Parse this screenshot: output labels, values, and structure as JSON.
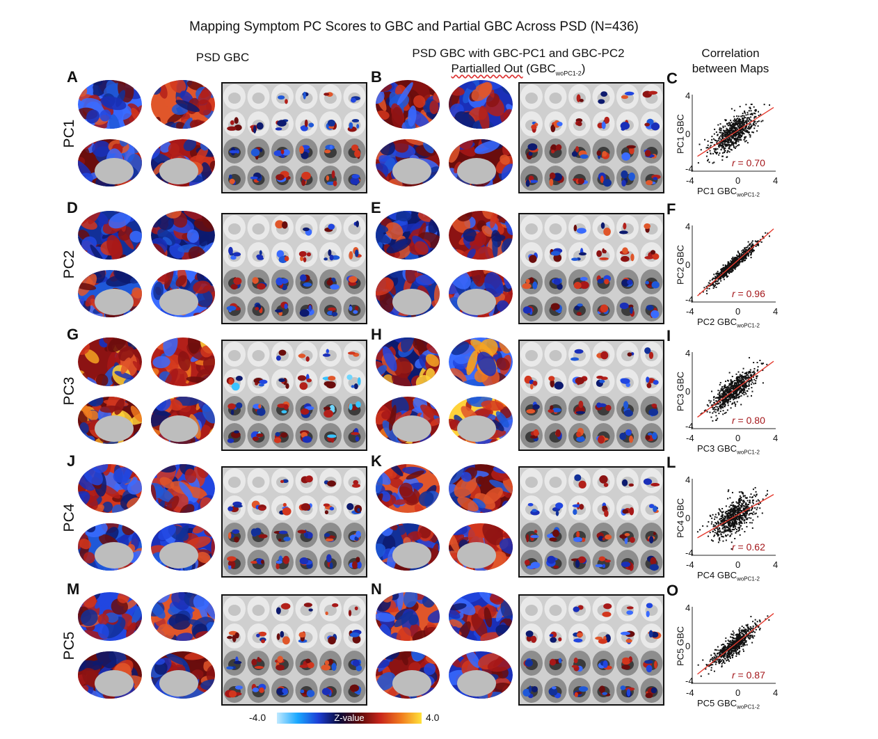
{
  "figure": {
    "title": "Mapping Symptom PC Scores to GBC and Partial GBC Across PSD (N=436)",
    "col_psd_gbc": "PSD GBC",
    "col_partial_line1": "PSD GBC with GBC-PC1 and GBC-PC2",
    "col_partial_line2a": "Partialled Out",
    "col_partial_line2b": "(GB",
    "col_partial_line2c": "C",
    "col_partial_sub": "woPC1-2",
    "col_partial_close": ")",
    "col_corr_line1": "Correlation",
    "col_corr_line2": "between Maps"
  },
  "rows": [
    {
      "pc": "PC1",
      "letters": [
        "A",
        "B",
        "C"
      ],
      "ylabel": "PC1 GBC",
      "xlabel": "PC1 GBC",
      "xsub": "woPC1-2",
      "r_prefix": "r",
      "r_value": " = 0.70",
      "r": 0.7
    },
    {
      "pc": "PC2",
      "letters": [
        "D",
        "E",
        "F"
      ],
      "ylabel": "PC2 GBC",
      "xlabel": "PC2 GBC",
      "xsub": "woPC1-2",
      "r_prefix": "r",
      "r_value": " = 0.96",
      "r": 0.96
    },
    {
      "pc": "PC3",
      "letters": [
        "G",
        "H",
        "I"
      ],
      "ylabel": "PC3 GBC",
      "xlabel": "PC3 GBC",
      "xsub": "woPC1-2",
      "r_prefix": "r",
      "r_value": " = 0.80",
      "r": 0.8
    },
    {
      "pc": "PC4",
      "letters": [
        "J",
        "K",
        "L"
      ],
      "ylabel": "PC4 GBC",
      "xlabel": "PC4 GBC",
      "xsub": "woPC1-2",
      "r_prefix": "r",
      "r_value": " = 0.62",
      "r": 0.62
    },
    {
      "pc": "PC5",
      "letters": [
        "M",
        "N",
        "O"
      ],
      "ylabel": "PC5 GBC",
      "xlabel": "PC5 GBC",
      "xsub": "woPC1-2",
      "r_prefix": "r",
      "r_value": " = 0.87",
      "r": 0.87
    }
  ],
  "scatter_ticks": {
    "neg": "-4",
    "zero": "0",
    "pos": "4"
  },
  "colorbar": {
    "min": "-4.0",
    "label": "Z-value",
    "max": "4.0",
    "colors": [
      "#bfe9ff",
      "#19a8ff",
      "#1d3fd6",
      "#0a0a3a",
      "#5a0a0a",
      "#c8261b",
      "#f07a1e",
      "#ffe23a"
    ]
  },
  "chart_data": [
    {
      "type": "scatter",
      "panel": "C",
      "xlabel": "PC1 GBC woPC1-2",
      "ylabel": "PC1 GBC",
      "xlim": [
        -4,
        4
      ],
      "ylim": [
        -4,
        4
      ],
      "annotation": "r = 0.70"
    },
    {
      "type": "scatter",
      "panel": "F",
      "xlabel": "PC2 GBC woPC1-2",
      "ylabel": "PC2 GBC",
      "xlim": [
        -4,
        4
      ],
      "ylim": [
        -4,
        4
      ],
      "annotation": "r = 0.96"
    },
    {
      "type": "scatter",
      "panel": "I",
      "xlabel": "PC3 GBC woPC1-2",
      "ylabel": "PC3 GBC",
      "xlim": [
        -4,
        4
      ],
      "ylim": [
        -4,
        4
      ],
      "annotation": "r = 0.80"
    },
    {
      "type": "scatter",
      "panel": "L",
      "xlabel": "PC4 GBC woPC1-2",
      "ylabel": "PC4 GBC",
      "xlim": [
        -4,
        4
      ],
      "ylim": [
        -4,
        4
      ],
      "annotation": "r = 0.62"
    },
    {
      "type": "scatter",
      "panel": "O",
      "xlabel": "PC5 GBC woPC1-2",
      "ylabel": "PC5 GBC",
      "xlim": [
        -4,
        4
      ],
      "ylim": [
        -4,
        4
      ],
      "annotation": "r = 0.87"
    }
  ]
}
